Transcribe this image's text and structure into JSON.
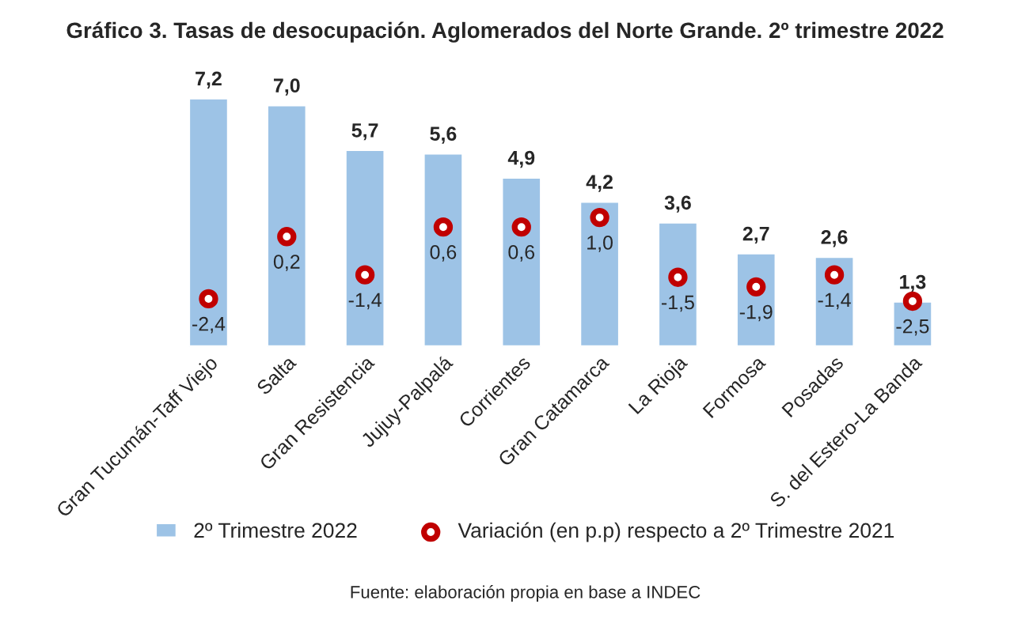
{
  "chart_data": {
    "type": "bar",
    "title": "Gráfico 3. Tasas de desocupación. Aglomerados del Norte Grande. 2º trimestre 2022",
    "categories": [
      "Gran Tucumán-Taff Viejo",
      "Salta",
      "Gran Resistencia",
      "Jujuy-Palpalá",
      "Corrientes",
      "Gran Catamarca",
      "La Rioja",
      "Formosa",
      "Posadas",
      "S. del Estero-La Banda"
    ],
    "series": [
      {
        "name": "2º Trimestre 2022",
        "color": "#9dc3e6",
        "values": [
          7.2,
          7.0,
          5.7,
          5.6,
          4.9,
          4.2,
          3.6,
          2.7,
          2.6,
          1.3
        ],
        "value_labels": [
          "7,2",
          "7,0",
          "5,7",
          "5,6",
          "4,9",
          "4,2",
          "3,6",
          "2,7",
          "2,6",
          "1,3"
        ]
      },
      {
        "name": "Variación (en p.p) respecto a 2º Trimestre 2021",
        "type": "scatter",
        "axis": "y2",
        "color": "#c00000",
        "values": [
          -2.4,
          0.2,
          -1.4,
          0.6,
          0.6,
          1.0,
          -1.5,
          -1.9,
          -1.4,
          -2.5
        ],
        "value_labels": [
          "-2,4",
          "0,2",
          "-1,4",
          "0,6",
          "0,6",
          "1,0",
          "-1,5",
          "-1,9",
          "-1,4",
          "-2,5"
        ]
      }
    ],
    "tick_labels": "x",
    "marker": "circle",
    "grid": false,
    "legend": "bottom",
    "annotations": [
      "Fuente: elaboración propia en base a INDEC"
    ]
  }
}
